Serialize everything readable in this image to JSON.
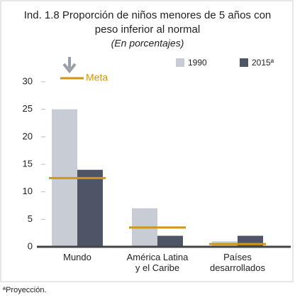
{
  "chart_data": {
    "type": "bar",
    "title": [
      "Ind. 1.8 Proporción de niños menores de 5 años con",
      "peso inferior al normal"
    ],
    "subtitle": "(En porcentajes)",
    "categories": [
      "Mundo",
      "América Latina\ny el Caribe",
      "Países\ndesarrollados"
    ],
    "series": [
      {
        "name": "1990",
        "color": "#c8ccd5",
        "values": [
          25,
          7,
          1
        ]
      },
      {
        "name": "2015ª",
        "color": "#4f5466",
        "values": [
          14,
          2,
          2
        ]
      }
    ],
    "target": {
      "name": "Meta",
      "color": "#d4960f",
      "values": [
        12.5,
        3.5,
        0.5
      ]
    },
    "ylim": [
      0,
      30
    ],
    "yticks": [
      0,
      5,
      10,
      15,
      20,
      25,
      30
    ],
    "footnote": "ªProyección."
  }
}
